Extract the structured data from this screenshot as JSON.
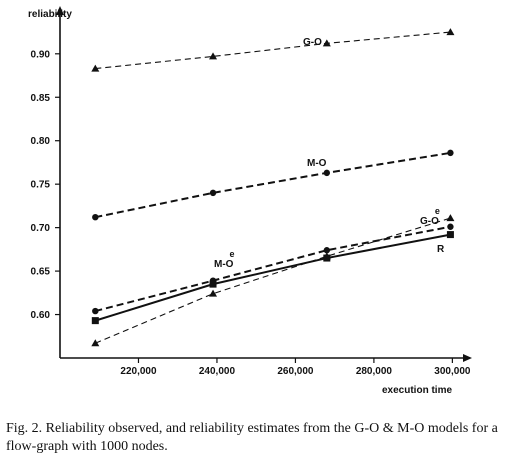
{
  "caption": "Fig. 2.   Reliability observed, and reliability estimates from the G-O & M-O models for a flow-graph with 1000 nodes.",
  "chart_data": {
    "type": "line",
    "xlabel": "execution time",
    "ylabel": "reliability",
    "xlim": [
      200000,
      305000
    ],
    "ylim": [
      0.55,
      0.955
    ],
    "x_ticks": [
      220000,
      240000,
      260000,
      280000,
      300000
    ],
    "x_tick_labels": [
      "220,000",
      "240,000",
      "260,000",
      "280,000",
      "300,000"
    ],
    "y_ticks": [
      0.6,
      0.65,
      0.7,
      0.75,
      0.8,
      0.85,
      0.9
    ],
    "y_tick_labels": [
      "0.60",
      "0.65",
      "0.70",
      "0.75",
      "0.80",
      "0.85",
      "0.90"
    ],
    "grid": false,
    "series": [
      {
        "name": "G-O",
        "style": "dashed",
        "marker": "triangle",
        "x": [
          209000,
          239000,
          268000,
          299500
        ],
        "y": [
          0.883,
          0.897,
          0.912,
          0.925
        ]
      },
      {
        "name": "M-O",
        "style": "dashed-bold",
        "marker": "circle",
        "x": [
          209000,
          239000,
          268000,
          299500
        ],
        "y": [
          0.712,
          0.74,
          0.763,
          0.786
        ]
      },
      {
        "name": "M-O",
        "sup": "e",
        "style": "dashed-bold",
        "marker": "circle",
        "x": [
          209000,
          239000,
          268000,
          299500
        ],
        "y": [
          0.604,
          0.639,
          0.674,
          0.701
        ]
      },
      {
        "name": "G-O",
        "sup": "e",
        "style": "dashed",
        "marker": "triangle",
        "x": [
          209000,
          239000,
          268000,
          299500
        ],
        "y": [
          0.567,
          0.624,
          0.667,
          0.711
        ]
      },
      {
        "name": "R",
        "style": "solid",
        "marker": "square",
        "x": [
          209000,
          239000,
          268000,
          299500
        ],
        "y": [
          0.593,
          0.635,
          0.665,
          0.692
        ]
      }
    ]
  }
}
